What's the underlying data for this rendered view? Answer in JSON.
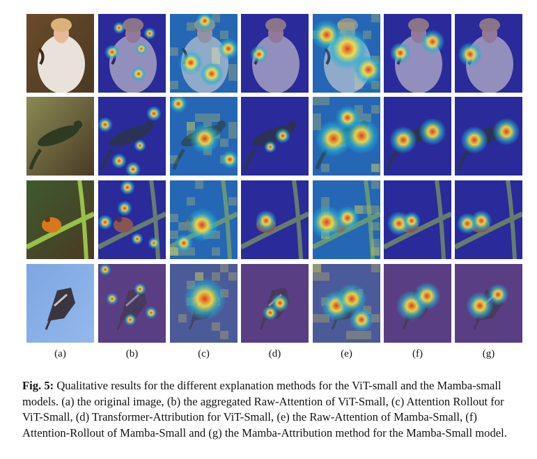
{
  "figure": {
    "columns": [
      "(a)",
      "(b)",
      "(c)",
      "(d)",
      "(e)",
      "(f)",
      "(g)"
    ],
    "rows": [
      {
        "subject": "woman in white robe holding a lizard",
        "colors": {
          "bg": "#6b4a2a",
          "fg": "#e8e2da",
          "skin": "#e8b89a"
        }
      },
      {
        "subject": "salamander on mossy rock",
        "colors": {
          "bg": "#8a8a55",
          "fg": "#2e3a22",
          "skin": "#c9c27a"
        }
      },
      {
        "subject": "frog on green stem",
        "colors": {
          "bg": "#3f5a2e",
          "fg": "#98c04a",
          "skin": "#d8781c"
        }
      },
      {
        "subject": "hawk flying in blue sky",
        "colors": {
          "bg": "#7ea6e2",
          "fg": "#3a3640",
          "skin": "#c7c3bd"
        }
      }
    ],
    "heatmap_colors": {
      "cold": "#2a2a9a",
      "cool": "#1fb0d8",
      "warm": "#f3e24a",
      "hot": "#e23a1c",
      "purple": "#5a3e84"
    }
  },
  "caption": {
    "label": "Fig. 5:",
    "text": "Qualitative results for the different explanation methods for the ViT-small and the Mamba-small models. (a) the original image, (b) the aggregated Raw-Attention of ViT-Small, (c) Attention Rollout for ViT-Small, (d) Transformer-Attribution for ViT-Small, (e) the Raw-Attention of Mamba-Small, (f) Attention-Rollout of Mamba-Small and (g) the Mamba-Attribution method for the Mamba-Small model."
  }
}
